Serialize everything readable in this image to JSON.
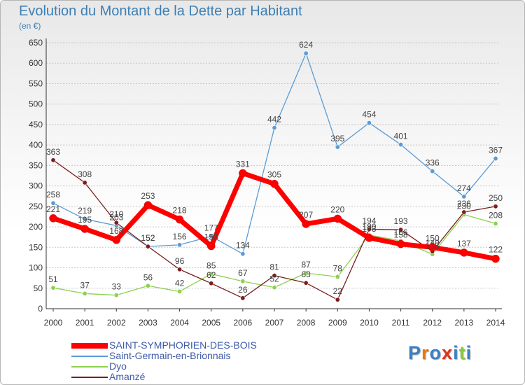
{
  "title": "Evolution du Montant de la Dette par Habitant",
  "unit": "(en €)",
  "logo": "Proxiti",
  "chart_data": {
    "type": "line",
    "title": "Evolution du Montant de la Dette par Habitant",
    "ylabel": "(en €)",
    "xlabel": "",
    "x": [
      "2000",
      "2001",
      "2002",
      "2003",
      "2004",
      "2005",
      "2006",
      "2007",
      "2008",
      "2009",
      "2010",
      "2011",
      "2012",
      "2013",
      "2014"
    ],
    "ylim": [
      0,
      650
    ],
    "yticks": [
      0,
      50,
      100,
      150,
      200,
      250,
      300,
      350,
      400,
      450,
      500,
      550,
      600,
      650
    ],
    "grid": "horizontal dashed",
    "legend_position": "bottom-left",
    "series": [
      {
        "name": "SAINT-SYMPHORIEN-DES-BOIS",
        "color": "#ff0000",
        "values": [
          221,
          195,
          168,
          253,
          218,
          153,
          331,
          305,
          207,
          220,
          173,
          158,
          150,
          137,
          122
        ],
        "labels": [
          "221",
          "195",
          "168",
          "253",
          "218",
          "153",
          "331",
          "305",
          "207",
          "220",
          "173",
          "158",
          "150",
          "137",
          "122"
        ]
      },
      {
        "name": "Saint-Germain-en-Brionnais",
        "color": "#5b9bd5",
        "values": [
          258,
          219,
          203,
          152,
          156,
          177,
          134,
          442,
          624,
          395,
          454,
          401,
          336,
          274,
          367
        ],
        "labels": [
          "258",
          "219",
          "203",
          "152",
          "156",
          "177",
          "134",
          "442",
          "624",
          "395",
          "454",
          "401",
          "336",
          "274",
          "367"
        ]
      },
      {
        "name": "Dyo",
        "color": "#8fd14f",
        "values": [
          51,
          37,
          33,
          56,
          42,
          85,
          67,
          52,
          87,
          78,
          180,
          166,
          133,
          230,
          208
        ],
        "labels": [
          "51",
          "37",
          "33",
          "56",
          "42",
          "85",
          "67",
          "52",
          "87",
          "78",
          "180",
          "166",
          "133",
          "230",
          "208"
        ]
      },
      {
        "name": "Amanzé",
        "color": "#7b1e1e",
        "values": [
          363,
          308,
          210,
          152,
          96,
          62,
          26,
          81,
          63,
          22,
          194,
          193,
          140,
          236,
          250
        ],
        "labels": [
          "363",
          "308",
          "210",
          "152",
          "96",
          "62",
          "26",
          "81",
          "63",
          "22",
          "194",
          "193",
          "140",
          "236",
          "250"
        ]
      }
    ]
  }
}
